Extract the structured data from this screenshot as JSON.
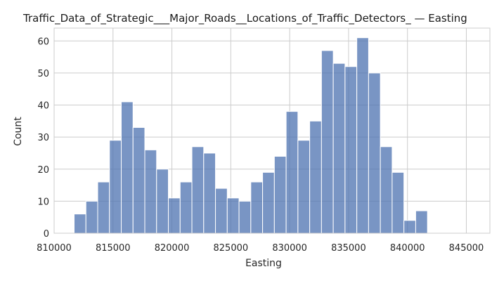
{
  "chart_data": {
    "type": "bar",
    "title": "Traffic_Data_of_Strategic___Major_Roads__Locations_of_Traffic_Detectors_ — Easting",
    "xlabel": "Easting",
    "ylabel": "Count",
    "xlim": [
      810000,
      847000
    ],
    "ylim": [
      0,
      64
    ],
    "xticks": [
      810000,
      815000,
      820000,
      825000,
      830000,
      835000,
      840000,
      845000
    ],
    "yticks": [
      0,
      10,
      20,
      30,
      40,
      50,
      60
    ],
    "grid": true,
    "bin_start": 811700,
    "bin_width": 1000,
    "values": [
      6,
      10,
      16,
      29,
      41,
      33,
      26,
      20,
      11,
      16,
      27,
      25,
      14,
      11,
      10,
      16,
      19,
      24,
      38,
      29,
      35,
      57,
      53,
      52,
      61,
      50,
      27,
      19,
      4,
      7
    ]
  }
}
